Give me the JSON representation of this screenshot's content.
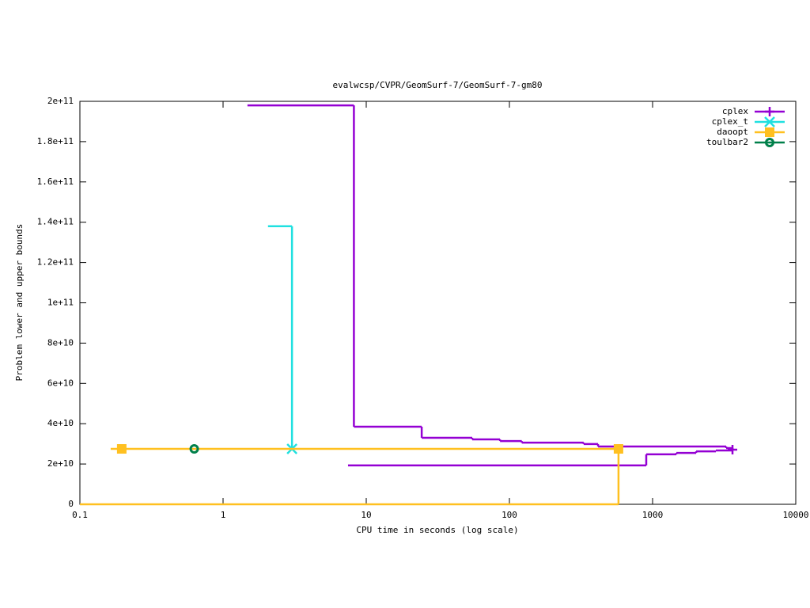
{
  "chart_data": {
    "type": "step",
    "title": "evalwcsp/CVPR/GeomSurf-7/GeomSurf-7-gm80",
    "x_label": "CPU time in seconds (log scale)",
    "y_label": "Problem lower and upper bounds",
    "xscale": "log",
    "xlim": [
      0.1,
      10000
    ],
    "xticks": [
      0.1,
      1,
      10,
      100,
      1000,
      10000
    ],
    "ylim": [
      0,
      200000000000
    ],
    "yticks": [
      0,
      {
        "value": 20000000000,
        "label": "2e+10"
      },
      {
        "value": 40000000000,
        "label": "4e+10"
      },
      {
        "value": 60000000000,
        "label": "6e+10"
      },
      {
        "value": 80000000000,
        "label": "8e+10"
      },
      {
        "value": 100000000000,
        "label": "1e+11"
      },
      {
        "value": 120000000000,
        "label": "1.2e+11"
      },
      {
        "value": 140000000000,
        "label": "1.4e+11"
      },
      {
        "value": 160000000000,
        "label": "1.6e+11"
      },
      {
        "value": 180000000000,
        "label": "1.8e+11"
      },
      {
        "value": 200000000000,
        "label": "2e+11"
      }
    ],
    "legend": "top-right",
    "series": [
      {
        "name": "cplex",
        "color": "#9400d3",
        "marker": "plus",
        "x": [
          1.48,
          8.2,
          24.4,
          55,
          86,
          122,
          330,
          416,
          3265,
          3615,
          null,
          7.46,
          903,
          1466,
          2015,
          2767,
          3615
        ],
        "values": [
          198000000000,
          38500000000,
          33000000000,
          32200000000,
          31400000000,
          30600000000,
          29900000000,
          28700000000,
          27900000000,
          27100000000,
          null,
          19300000000,
          24800000000,
          25500000000,
          26300000000,
          26700000000,
          27100000000
        ],
        "marker_x": [
          3615
        ],
        "marker_values": [
          27100000000
        ]
      },
      {
        "name": "cplex_t",
        "color": "#20e0e0",
        "marker": "cross",
        "x": [
          2.06,
          3.03
        ],
        "values": [
          138000000000,
          27500000000
        ],
        "marker_x": [
          3.03
        ],
        "marker_values": [
          27500000000
        ]
      },
      {
        "name": "daoopt",
        "color": "#ffc020",
        "marker": "square",
        "x": [
          0.164,
          578,
          578,
          null,
          0.1,
          578
        ],
        "values": [
          27500000000,
          27500000000,
          0,
          null,
          0,
          0
        ],
        "marker_x": [
          0.196,
          578
        ],
        "marker_values": [
          27500000000,
          27500000000
        ]
      },
      {
        "name": "toulbar2",
        "color": "#00804a",
        "marker": "circle",
        "x": [
          0.629
        ],
        "values": [
          27500000000
        ],
        "marker_x": [
          0.629
        ],
        "marker_values": [
          27500000000
        ]
      }
    ]
  }
}
